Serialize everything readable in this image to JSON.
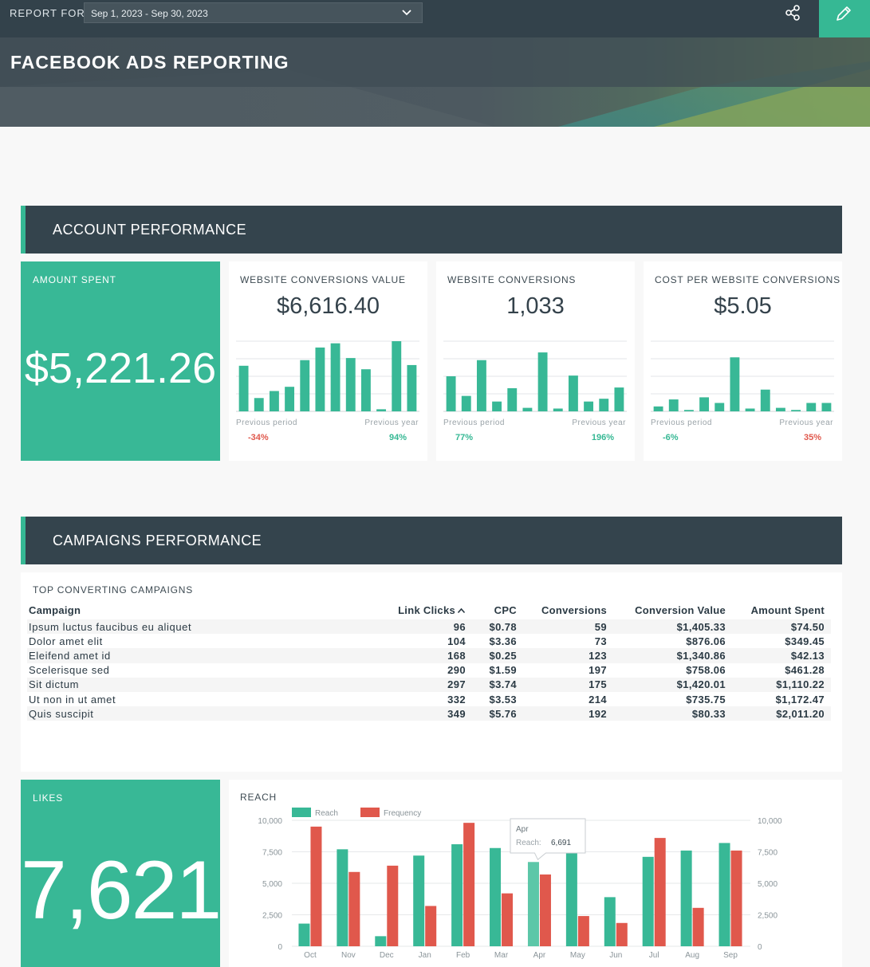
{
  "header": {
    "report_for_label": "REPORT FOR",
    "date_range": "Sep 1, 2023 - Sep 30, 2023",
    "title": "FACEBOOK ADS REPORTING"
  },
  "icons": {
    "chevron": "chevron-down-icon",
    "share": "share-icon",
    "edit": "pencil-icon",
    "sort": "sort-ascending-icon"
  },
  "colors": {
    "accent": "#38b896",
    "header": "#33424b",
    "positive": "#36b894",
    "negative": "#e0584c",
    "frequency": "#e0584c"
  },
  "account_performance": {
    "section_title": "ACCOUNT PERFORMANCE",
    "amount_spent": {
      "label": "AMOUNT SPENT",
      "value": "$5,221.26"
    },
    "cards": [
      {
        "label": "WEBSITE CONVERSIONS VALUE",
        "value": "$6,616.40",
        "prev_period_label": "Previous period",
        "prev_period_value": "-34%",
        "prev_period_trend": "negative",
        "prev_year_label": "Previous year",
        "prev_year_value": "94%",
        "prev_year_trend": "positive",
        "bars": [
          0.65,
          0.19,
          0.29,
          0.35,
          0.73,
          0.91,
          0.97,
          0.76,
          0.6,
          0.03,
          1.0,
          0.66
        ]
      },
      {
        "label": "WEBSITE CONVERSIONS",
        "value": "1,033",
        "prev_period_label": "Previous period",
        "prev_period_value": "77%",
        "prev_period_trend": "positive",
        "prev_year_label": "Previous year",
        "prev_year_value": "196%",
        "prev_year_trend": "positive",
        "bars": [
          0.5,
          0.22,
          0.73,
          0.14,
          0.33,
          0.05,
          0.84,
          0.04,
          0.51,
          0.14,
          0.18,
          0.34
        ]
      },
      {
        "label": "COST PER WEBSITE CONVERSIONS",
        "value": "$5.05",
        "prev_period_label": "Previous period",
        "prev_period_value": "-6%",
        "prev_period_trend": "positive",
        "prev_year_label": "Previous year",
        "prev_year_value": "35%",
        "prev_year_trend": "negative",
        "bars": [
          0.07,
          0.17,
          0.02,
          0.2,
          0.12,
          0.77,
          0.04,
          0.31,
          0.05,
          0.02,
          0.12,
          0.12
        ]
      }
    ]
  },
  "campaigns_performance": {
    "section_title": "CAMPAIGNS PERFORMANCE",
    "table_title": "TOP CONVERTING CAMPAIGNS",
    "columns": [
      "Campaign",
      "Link Clicks",
      "CPC",
      "Conversions",
      "Conversion Value",
      "Amount Spent"
    ],
    "rows": [
      [
        "Ipsum luctus faucibus eu aliquet",
        "96",
        "$0.78",
        "59",
        "$1,405.33",
        "$74.50"
      ],
      [
        "Dolor amet elit",
        "104",
        "$3.36",
        "73",
        "$876.06",
        "$349.45"
      ],
      [
        "Eleifend amet id",
        "168",
        "$0.25",
        "123",
        "$1,340.86",
        "$42.13"
      ],
      [
        "Scelerisque sed",
        "290",
        "$1.59",
        "197",
        "$758.06",
        "$461.28"
      ],
      [
        "Sit dictum",
        "297",
        "$3.74",
        "175",
        "$1,420.01",
        "$1,110.22"
      ],
      [
        "Ut non in ut amet",
        "332",
        "$3.53",
        "214",
        "$735.75",
        "$1,172.47"
      ],
      [
        "Quis suscipit",
        "349",
        "$5.76",
        "192",
        "$80.33",
        "$2,011.20"
      ]
    ],
    "likes": {
      "label": "LIKES",
      "value": "7,621"
    }
  },
  "chart_data": {
    "type": "bar",
    "title": "REACH",
    "categories": [
      "Oct",
      "Nov",
      "Dec",
      "Jan",
      "Feb",
      "Mar",
      "Apr",
      "May",
      "Jun",
      "Jul",
      "Aug",
      "Sep"
    ],
    "series": [
      {
        "name": "Reach",
        "color": "#38b896",
        "axis": "left",
        "values": [
          1800,
          7700,
          800,
          7200,
          8100,
          7800,
          6691,
          7400,
          3900,
          7100,
          7600,
          8200
        ]
      },
      {
        "name": "Frequency",
        "color": "#e0584c",
        "axis": "right",
        "values": [
          9500,
          5900,
          6400,
          3200,
          9800,
          4200,
          5700,
          2400,
          1850,
          8600,
          3050,
          7600
        ]
      }
    ],
    "y_ticks": [
      "10,000",
      "7,500",
      "5,000",
      "2,500",
      "0"
    ],
    "ylim": [
      0,
      10000
    ],
    "y2lim": [
      0,
      10000
    ],
    "grid": true,
    "legend_position": "top-left",
    "tooltip": {
      "category": "Apr",
      "series_label": "Reach:",
      "value": "6,691"
    }
  }
}
